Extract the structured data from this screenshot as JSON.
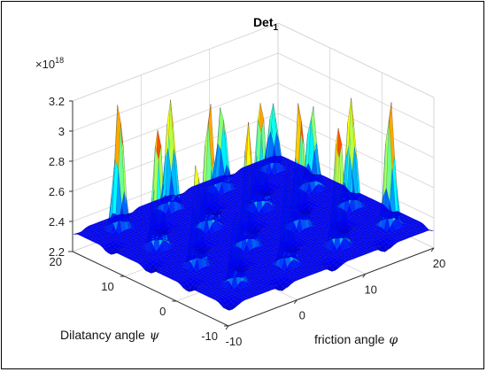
{
  "figure": {
    "title": "Det",
    "title_subscript": "1",
    "exponent_base": "×10",
    "exponent_power": "18"
  },
  "chart_data": {
    "type": "surface",
    "title": "Det_1",
    "xlabel": "friction angle",
    "xlabel_symbol": "φ",
    "ylabel": "Dilatancy angle",
    "ylabel_symbol": "ψ",
    "zlabel": "",
    "z_multiplier": "×10^18",
    "x_range": [
      -10,
      20
    ],
    "y_range": [
      -10,
      20
    ],
    "zlim": [
      2.2,
      3.2
    ],
    "x_ticks": [
      "-10",
      "0",
      "10",
      "20"
    ],
    "y_ticks": [
      "-10",
      "0",
      "10",
      "20"
    ],
    "z_ticks": [
      "2.2",
      "2.4",
      "2.6",
      "2.8",
      "3",
      "3.2"
    ],
    "surface": {
      "base_level": 2.33,
      "peak_max": 3.2,
      "peak_min": 2.72,
      "peak_count": 25,
      "grid_peaks": "5x5 periodic array"
    },
    "colormap": "jet",
    "grid": true,
    "box": true
  }
}
